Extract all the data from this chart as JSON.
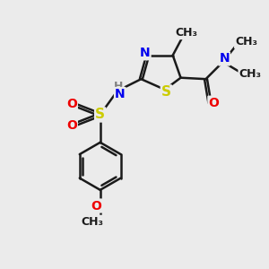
{
  "bg_color": "#ebebeb",
  "bond_color": "#1a1a1a",
  "S_color": "#cccc00",
  "N_color": "#0000ee",
  "O_color": "#ee0000",
  "H_color": "#808080",
  "font_size": 10,
  "figsize": [
    3.0,
    3.0
  ],
  "dpi": 100,
  "xlim": [
    0,
    10
  ],
  "ylim": [
    0,
    10
  ]
}
